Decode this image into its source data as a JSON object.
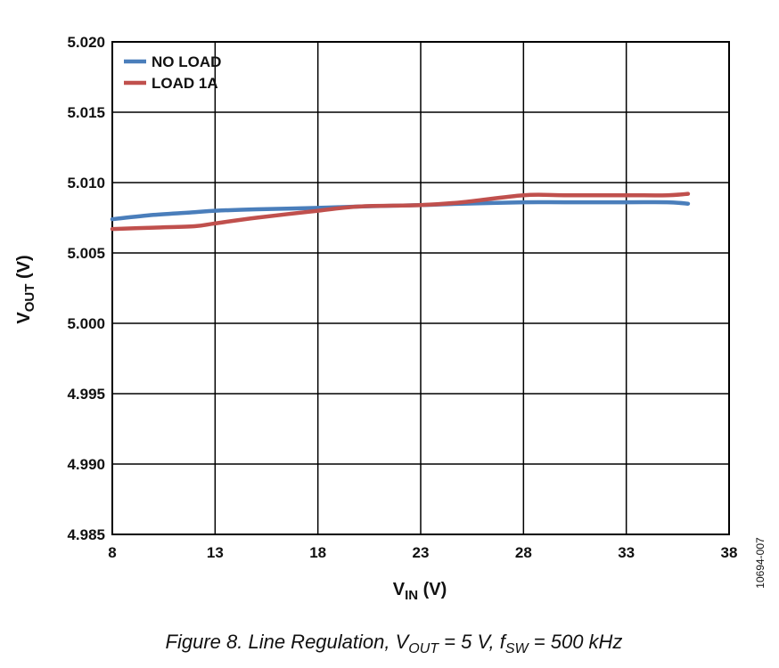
{
  "chart_data": {
    "type": "line",
    "xlabel": {
      "main": "V",
      "sub": "IN",
      "unit": " (V)"
    },
    "ylabel": {
      "main": "V",
      "sub": "OUT",
      "unit": " (V)"
    },
    "xlim": [
      8,
      38
    ],
    "ylim": [
      4.985,
      5.02
    ],
    "x_ticks": [
      8,
      13,
      18,
      23,
      28,
      33,
      38
    ],
    "x_tick_labels": [
      "8",
      "13",
      "18",
      "23",
      "28",
      "33",
      "38"
    ],
    "y_ticks": [
      4.985,
      4.99,
      4.995,
      5.0,
      5.005,
      5.01,
      5.015,
      5.02
    ],
    "y_tick_labels": [
      "4.985",
      "4.990",
      "4.995",
      "5.000",
      "5.005",
      "5.010",
      "5.015",
      "5.020"
    ],
    "grid": true,
    "legend_position": "top-left",
    "series": [
      {
        "name": "NO LOAD",
        "color": "#4a7ebb",
        "x": [
          8,
          10,
          12,
          13,
          15,
          18,
          20,
          23,
          25,
          28,
          30,
          33,
          35,
          36
        ],
        "y": [
          5.0074,
          5.0077,
          5.0079,
          5.008,
          5.0081,
          5.0082,
          5.0083,
          5.0084,
          5.0085,
          5.0086,
          5.0086,
          5.0086,
          5.0086,
          5.0085
        ]
      },
      {
        "name": "LOAD 1A",
        "color": "#c0504d",
        "x": [
          8,
          10,
          12,
          13,
          15,
          18,
          20,
          23,
          25,
          28,
          30,
          33,
          35,
          36
        ],
        "y": [
          5.0067,
          5.0068,
          5.0069,
          5.0071,
          5.0075,
          5.008,
          5.0083,
          5.0084,
          5.0086,
          5.0091,
          5.0091,
          5.0091,
          5.0091,
          5.0092
        ]
      }
    ]
  },
  "figure_id": "10694-007",
  "caption": {
    "prefix": "Figure 8. Line Regulation, V",
    "sub1": "OUT",
    "mid": " = 5 V, f",
    "sub2": "SW",
    "suffix": " = 500 kHz"
  }
}
